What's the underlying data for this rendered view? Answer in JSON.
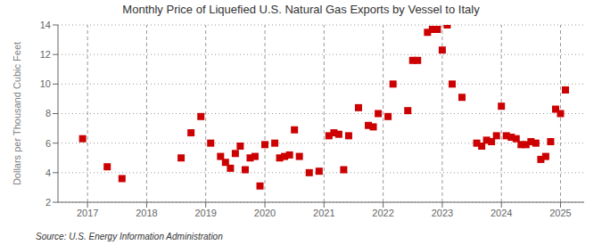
{
  "chart_data": {
    "type": "scatter",
    "title": "Monthly Price of Liquefied U.S. Natural Gas Exports by Vessel to Italy",
    "ylabel": "Dollars per Thousand Cubic Feet",
    "annotations": [
      "Source: U.S. Energy Information Administration"
    ],
    "x": [
      2016.917,
      2017.333,
      2017.583,
      2018.583,
      2018.75,
      2018.917,
      2019.083,
      2019.25,
      2019.333,
      2019.417,
      2019.5,
      2019.583,
      2019.667,
      2019.75,
      2019.833,
      2019.917,
      2020.0,
      2020.167,
      2020.25,
      2020.333,
      2020.417,
      2020.5,
      2020.583,
      2020.75,
      2020.917,
      2021.083,
      2021.167,
      2021.25,
      2021.333,
      2021.417,
      2021.583,
      2021.75,
      2021.833,
      2021.917,
      2022.083,
      2022.167,
      2022.417,
      2022.5,
      2022.583,
      2022.75,
      2022.833,
      2022.917,
      2023.0,
      2023.083,
      2023.167,
      2023.333,
      2023.583,
      2023.667,
      2023.75,
      2023.833,
      2023.917,
      2024.0,
      2024.083,
      2024.167,
      2024.25,
      2024.333,
      2024.417,
      2024.5,
      2024.583,
      2024.667,
      2024.75,
      2024.833,
      2024.917,
      2025.0,
      2025.083
    ],
    "values": [
      6.3,
      4.4,
      3.6,
      5.0,
      6.7,
      7.8,
      6.0,
      5.1,
      4.7,
      4.3,
      5.3,
      5.8,
      4.2,
      5.0,
      5.1,
      3.1,
      5.9,
      6.0,
      5.0,
      5.1,
      5.2,
      6.9,
      5.1,
      4.0,
      4.1,
      6.5,
      6.7,
      6.6,
      4.2,
      6.5,
      8.4,
      7.2,
      7.1,
      8.0,
      7.8,
      10.0,
      8.2,
      11.6,
      11.6,
      13.5,
      13.7,
      13.7,
      12.3,
      14.0,
      10.0,
      9.1,
      6.0,
      5.8,
      6.2,
      6.1,
      6.5,
      8.5,
      6.5,
      6.4,
      6.3,
      5.9,
      5.9,
      6.1,
      6.0,
      4.9,
      5.1,
      6.1,
      8.3,
      8.0,
      9.6
    ],
    "color": "#cc0000",
    "marker": "square",
    "xlim": [
      2016.5,
      2025.4
    ],
    "xticks": [
      2017,
      2018,
      2019,
      2020,
      2021,
      2022,
      2023,
      2024,
      2025
    ],
    "ylim": [
      2,
      14
    ],
    "yticks": [
      2,
      4,
      6,
      8,
      10,
      12,
      14
    ],
    "grid": true
  }
}
